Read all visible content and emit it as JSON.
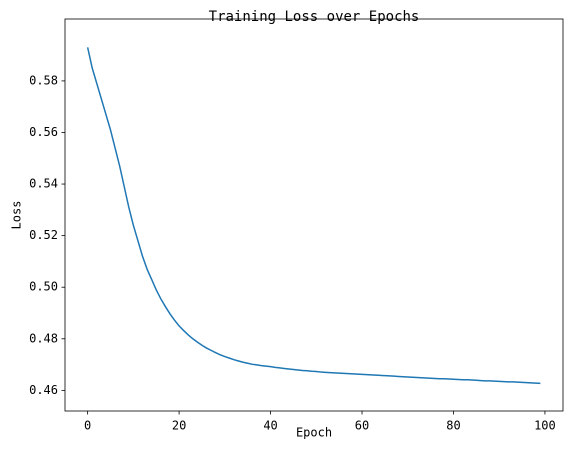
{
  "chart_data": {
    "type": "line",
    "title": "Training Loss over Epochs",
    "x_label": "Epoch",
    "y_label": "Loss",
    "x": [
      0,
      1,
      2,
      3,
      4,
      5,
      6,
      7,
      8,
      9,
      10,
      11,
      12,
      13,
      14,
      15,
      16,
      17,
      18,
      19,
      20,
      21,
      22,
      23,
      24,
      25,
      26,
      27,
      28,
      29,
      30,
      31,
      32,
      33,
      34,
      35,
      36,
      37,
      38,
      39,
      40,
      41,
      42,
      43,
      44,
      45,
      46,
      47,
      48,
      49,
      50,
      51,
      52,
      53,
      54,
      55,
      56,
      57,
      58,
      59,
      60,
      61,
      62,
      63,
      64,
      65,
      66,
      67,
      68,
      69,
      70,
      71,
      72,
      73,
      74,
      75,
      76,
      77,
      78,
      79,
      80,
      81,
      82,
      83,
      84,
      85,
      86,
      87,
      88,
      89,
      90,
      91,
      92,
      93,
      94,
      95,
      96,
      97,
      98,
      99
    ],
    "series": [
      {
        "name": "Loss",
        "color": "#1f77b4",
        "values": [
          0.593,
          0.585,
          0.579,
          0.573,
          0.567,
          0.561,
          0.554,
          0.547,
          0.539,
          0.531,
          0.524,
          0.518,
          0.512,
          0.507,
          0.503,
          0.499,
          0.4955,
          0.4925,
          0.4897,
          0.4872,
          0.485,
          0.4832,
          0.4815,
          0.48,
          0.4787,
          0.4775,
          0.4764,
          0.4755,
          0.4746,
          0.4738,
          0.4731,
          0.4725,
          0.4719,
          0.4714,
          0.4709,
          0.4705,
          0.4701,
          0.4699,
          0.4696,
          0.4694,
          0.4692,
          0.4689,
          0.4687,
          0.4685,
          0.4683,
          0.4681,
          0.4679,
          0.4677,
          0.4676,
          0.4674,
          0.4673,
          0.4671,
          0.467,
          0.4669,
          0.4668,
          0.4667,
          0.4666,
          0.4665,
          0.4664,
          0.4663,
          0.4662,
          0.4661,
          0.466,
          0.4659,
          0.4658,
          0.4657,
          0.4656,
          0.4655,
          0.4654,
          0.4653,
          0.4652,
          0.4651,
          0.465,
          0.4649,
          0.4648,
          0.4647,
          0.4646,
          0.4645,
          0.4645,
          0.4644,
          0.4643,
          0.4642,
          0.4641,
          0.4641,
          0.464,
          0.4639,
          0.4638,
          0.4637,
          0.4637,
          0.4636,
          0.4635,
          0.4634,
          0.4633,
          0.4633,
          0.4632,
          0.4631,
          0.463,
          0.4629,
          0.4628,
          0.4627
        ]
      }
    ],
    "xlim": [
      -4.95,
      103.95
    ],
    "xticks": [
      0,
      20,
      40,
      60,
      80,
      100
    ],
    "ylim": [
      0.452,
      0.604
    ],
    "yticks": [
      0.46,
      0.48,
      {
        "value": 0.5,
        "label": "0.50"
      },
      0.52,
      0.54,
      0.56,
      0.58
    ]
  }
}
